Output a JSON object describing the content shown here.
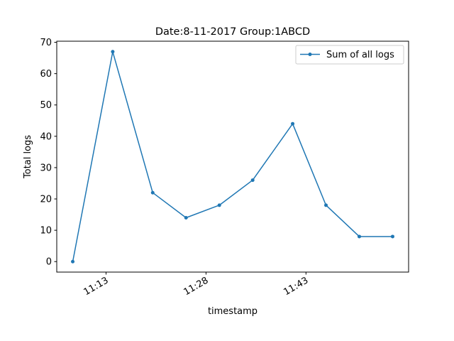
{
  "chart_data": {
    "type": "line",
    "title": "Date:8-11-2017  Group:1ABCD",
    "xlabel": "timestamp",
    "ylabel": "Total logs",
    "x": [
      "11:08",
      "11:14",
      "11:20",
      "11:25",
      "11:30",
      "11:35",
      "11:41",
      "11:46",
      "11:51",
      "11:56"
    ],
    "xticks": [
      "11:13",
      "11:28",
      "11:43"
    ],
    "ylim": [
      -3.35,
      70.35
    ],
    "yticks": [
      0,
      10,
      20,
      30,
      40,
      50,
      60,
      70
    ],
    "series": [
      {
        "name": "Sum of all logs",
        "color": "#1f77b4",
        "marker": "point",
        "values": [
          0,
          67,
          22,
          14,
          18,
          26,
          44,
          18,
          8,
          8
        ]
      }
    ],
    "legend": "top-right",
    "grid": false
  }
}
